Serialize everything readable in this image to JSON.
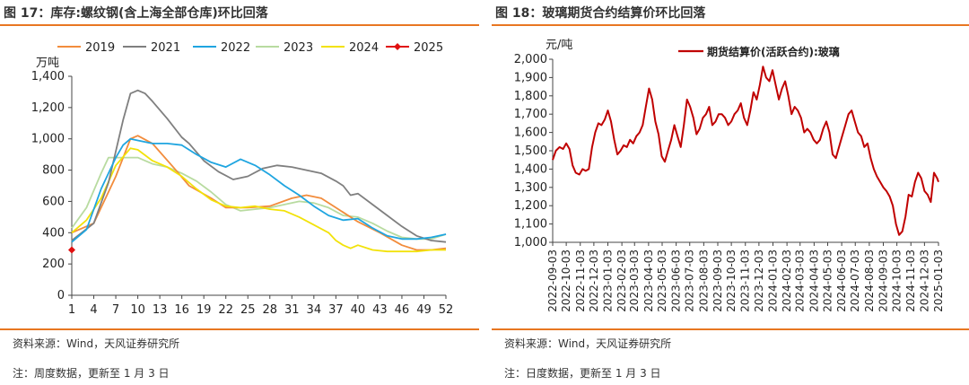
{
  "left": {
    "figure_title": "图 17：库存:螺纹钢(含上海全部仓库)环比回落",
    "source": "资料来源：Wind，天风证券研究所",
    "note": "注：周度数据，更新至 1 月 3 日",
    "chart_data": {
      "type": "line",
      "ylabel": "万吨",
      "ylim": [
        0,
        1400
      ],
      "yticks": [
        0,
        200,
        400,
        600,
        800,
        1000,
        1200,
        1400
      ],
      "ytick_labels": [
        "0",
        "200",
        "400",
        "600",
        "800",
        "1,000",
        "1,200",
        "1,400"
      ],
      "xlim": [
        1,
        52
      ],
      "xticks": [
        1,
        4,
        7,
        10,
        13,
        16,
        19,
        22,
        25,
        28,
        31,
        34,
        37,
        40,
        43,
        46,
        49,
        52
      ],
      "grid": false,
      "legend_position": "top",
      "series": [
        {
          "name": "2019",
          "color": "#f28c3c",
          "marker": "none",
          "x": [
            1,
            4,
            7,
            9,
            10,
            12,
            15,
            17,
            20,
            22,
            25,
            28,
            31,
            33,
            35,
            37,
            40,
            43,
            46,
            48,
            50,
            52
          ],
          "y": [
            400,
            460,
            760,
            1000,
            1020,
            970,
            810,
            700,
            620,
            560,
            560,
            570,
            620,
            640,
            620,
            560,
            470,
            400,
            320,
            290,
            290,
            300
          ]
        },
        {
          "name": "2021",
          "color": "#7f7f7f",
          "marker": "none",
          "x": [
            1,
            4,
            6,
            8,
            9,
            10,
            11,
            12,
            14,
            16,
            17,
            19,
            21,
            23,
            25,
            27,
            29,
            31,
            33,
            35,
            37,
            38,
            39,
            40,
            42,
            44,
            46,
            48,
            50,
            52
          ],
          "y": [
            350,
            460,
            720,
            1120,
            1290,
            1310,
            1290,
            1240,
            1130,
            1010,
            970,
            860,
            790,
            740,
            760,
            810,
            830,
            820,
            800,
            780,
            730,
            700,
            640,
            650,
            580,
            510,
            440,
            380,
            350,
            340
          ]
        },
        {
          "name": "2022",
          "color": "#1fa5e0",
          "marker": "none",
          "x": [
            1,
            3,
            5,
            7,
            8,
            9,
            10,
            12,
            14,
            16,
            18,
            20,
            22,
            24,
            26,
            28,
            30,
            32,
            34,
            36,
            38,
            40,
            42,
            44,
            46,
            48,
            50,
            52
          ],
          "y": [
            340,
            420,
            680,
            880,
            960,
            1000,
            990,
            970,
            970,
            960,
            900,
            850,
            820,
            870,
            830,
            770,
            700,
            640,
            570,
            510,
            480,
            490,
            430,
            380,
            360,
            360,
            370,
            390
          ]
        },
        {
          "name": "2023",
          "color": "#b8dba0",
          "marker": "none",
          "x": [
            1,
            3,
            5,
            6,
            8,
            10,
            12,
            14,
            16,
            18,
            20,
            22,
            24,
            26,
            28,
            30,
            32,
            34,
            36,
            38,
            40,
            42,
            44,
            46,
            48,
            50,
            52
          ],
          "y": [
            430,
            560,
            780,
            880,
            880,
            880,
            840,
            820,
            780,
            730,
            660,
            580,
            540,
            550,
            560,
            580,
            600,
            590,
            560,
            510,
            500,
            460,
            410,
            370,
            360,
            360,
            390
          ]
        },
        {
          "name": "2024",
          "color": "#f2e20a",
          "marker": "none",
          "x": [
            1,
            3,
            5,
            7,
            9,
            10,
            12,
            14,
            16,
            18,
            20,
            22,
            24,
            26,
            28,
            30,
            32,
            34,
            36,
            37,
            38,
            39,
            40,
            42,
            44,
            46,
            48,
            50,
            52
          ],
          "y": [
            400,
            480,
            620,
            830,
            940,
            930,
            860,
            820,
            760,
            680,
            610,
            570,
            560,
            570,
            550,
            540,
            500,
            450,
            400,
            350,
            320,
            300,
            320,
            290,
            280,
            280,
            280,
            290,
            290
          ]
        },
        {
          "name": "2025",
          "color": "#e01010",
          "marker": "diamond",
          "x": [
            1
          ],
          "y": [
            290
          ]
        }
      ]
    }
  },
  "right": {
    "figure_title": "图 18：玻璃期货合约结算价环比回落",
    "source": "资料来源：Wind，天风证券研究所",
    "note": "注：日度数据，更新至 1 月 3 日",
    "chart_data": {
      "type": "line",
      "ylabel": "元/吨",
      "ylim": [
        1000,
        2000
      ],
      "yticks": [
        1000,
        1100,
        1200,
        1300,
        1400,
        1500,
        1600,
        1700,
        1800,
        1900,
        2000
      ],
      "ytick_labels": [
        "1,000",
        "1,100",
        "1,200",
        "1,300",
        "1,400",
        "1,500",
        "1,600",
        "1,700",
        "1,800",
        "1,900",
        "2,000"
      ],
      "xlabels": [
        "2022-09-03",
        "2022-10-03",
        "2022-11-03",
        "2022-12-03",
        "2023-01-03",
        "2023-02-03",
        "2023-03-03",
        "2023-04-03",
        "2023-05-03",
        "2023-06-03",
        "2023-07-03",
        "2023-08-03",
        "2023-09-03",
        "2023-10-03",
        "2023-11-03",
        "2023-12-03",
        "2024-01-03",
        "2024-02-03",
        "2024-03-03",
        "2024-04-03",
        "2024-05-03",
        "2024-06-03",
        "2024-07-03",
        "2024-08-03",
        "2024-09-03",
        "2024-10-03",
        "2024-11-03",
        "2024-12-03",
        "2025-01-03"
      ],
      "grid": false,
      "legend_position": "top",
      "series": [
        {
          "name": "期货结算价(活跃合约):玻璃",
          "color": "#c00000",
          "x": [
            "2022-09-03",
            "2022-09-10",
            "2022-09-18",
            "2022-09-26",
            "2022-10-03",
            "2022-10-10",
            "2022-10-17",
            "2022-10-24",
            "2022-11-01",
            "2022-11-08",
            "2022-11-15",
            "2022-11-22",
            "2022-11-29",
            "2022-12-06",
            "2022-12-13",
            "2022-12-20",
            "2022-12-27",
            "2023-01-03",
            "2023-01-10",
            "2023-01-17",
            "2023-01-24",
            "2023-01-31",
            "2023-02-07",
            "2023-02-14",
            "2023-02-21",
            "2023-02-28",
            "2023-03-07",
            "2023-03-14",
            "2023-03-21",
            "2023-03-28",
            "2023-04-04",
            "2023-04-11",
            "2023-04-18",
            "2023-04-25",
            "2023-05-02",
            "2023-05-09",
            "2023-05-16",
            "2023-05-23",
            "2023-05-30",
            "2023-06-06",
            "2023-06-13",
            "2023-06-20",
            "2023-06-27",
            "2023-07-04",
            "2023-07-11",
            "2023-07-18",
            "2023-07-25",
            "2023-08-01",
            "2023-08-08",
            "2023-08-15",
            "2023-08-22",
            "2023-08-29",
            "2023-09-05",
            "2023-09-12",
            "2023-09-19",
            "2023-09-26",
            "2023-10-03",
            "2023-10-10",
            "2023-10-17",
            "2023-10-24",
            "2023-10-31",
            "2023-11-07",
            "2023-11-14",
            "2023-11-21",
            "2023-11-28",
            "2023-12-05",
            "2023-12-12",
            "2023-12-19",
            "2023-12-26",
            "2024-01-02",
            "2024-01-09",
            "2024-01-16",
            "2024-01-23",
            "2024-01-30",
            "2024-02-06",
            "2024-02-13",
            "2024-02-20",
            "2024-02-27",
            "2024-03-05",
            "2024-03-12",
            "2024-03-19",
            "2024-03-26",
            "2024-04-02",
            "2024-04-09",
            "2024-04-16",
            "2024-04-23",
            "2024-04-30",
            "2024-05-07",
            "2024-05-14",
            "2024-05-21",
            "2024-05-28",
            "2024-06-04",
            "2024-06-11",
            "2024-06-18",
            "2024-06-25",
            "2024-07-02",
            "2024-07-09",
            "2024-07-16",
            "2024-07-23",
            "2024-07-30",
            "2024-08-06",
            "2024-08-13",
            "2024-08-20",
            "2024-08-27",
            "2024-09-03",
            "2024-09-10",
            "2024-09-17",
            "2024-09-24",
            "2024-10-01",
            "2024-10-08",
            "2024-10-15",
            "2024-10-22",
            "2024-10-29",
            "2024-11-05",
            "2024-11-12",
            "2024-11-19",
            "2024-11-26",
            "2024-12-03",
            "2024-12-10",
            "2024-12-17",
            "2024-12-24",
            "2024-12-31",
            "2025-01-03"
          ],
          "y": [
            1450,
            1500,
            1520,
            1510,
            1540,
            1510,
            1420,
            1380,
            1370,
            1400,
            1390,
            1400,
            1520,
            1600,
            1650,
            1640,
            1670,
            1720,
            1660,
            1560,
            1480,
            1500,
            1530,
            1520,
            1560,
            1540,
            1580,
            1600,
            1640,
            1740,
            1840,
            1780,
            1660,
            1590,
            1470,
            1440,
            1500,
            1560,
            1640,
            1580,
            1520,
            1640,
            1780,
            1740,
            1680,
            1590,
            1620,
            1680,
            1700,
            1740,
            1640,
            1660,
            1700,
            1700,
            1680,
            1640,
            1660,
            1700,
            1720,
            1760,
            1680,
            1640,
            1720,
            1820,
            1780,
            1860,
            1960,
            1900,
            1880,
            1940,
            1860,
            1780,
            1840,
            1880,
            1800,
            1700,
            1740,
            1720,
            1680,
            1600,
            1620,
            1600,
            1560,
            1540,
            1560,
            1620,
            1660,
            1600,
            1480,
            1460,
            1520,
            1580,
            1640,
            1700,
            1720,
            1660,
            1600,
            1580,
            1520,
            1540,
            1460,
            1400,
            1360,
            1330,
            1300,
            1280,
            1250,
            1200,
            1100,
            1040,
            1060,
            1140,
            1260,
            1250,
            1330,
            1380,
            1350,
            1280,
            1260,
            1220,
            1380,
            1350,
            1330
          ]
        }
      ]
    }
  }
}
